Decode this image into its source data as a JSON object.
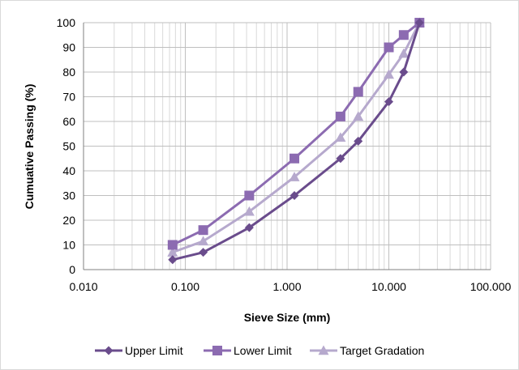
{
  "chart_data": {
    "type": "line",
    "xlabel": "Sieve Size (mm)",
    "ylabel": "Cumuative Passing (%)",
    "xscale": "log",
    "xlim": [
      0.01,
      100
    ],
    "ylim": [
      0,
      100
    ],
    "x_ticks": [
      0.01,
      0.1,
      1,
      10,
      100
    ],
    "x_tick_labels": [
      "0.010",
      "0.100",
      "1.000",
      "10.000",
      "100.000"
    ],
    "y_ticks": [
      0,
      10,
      20,
      30,
      40,
      50,
      60,
      70,
      80,
      90,
      100
    ],
    "y_tick_labels": [
      "0",
      "10",
      "20",
      "30",
      "40",
      "50",
      "60",
      "70",
      "80",
      "90",
      "100"
    ],
    "grid": "major and minor vertical gridlines, major horizontal gridlines",
    "legend_position": "bottom",
    "series": [
      {
        "name": "Upper Limit",
        "marker": "diamond",
        "color": "#6a4c8c",
        "x": [
          0.075,
          0.15,
          0.425,
          1.18,
          3.35,
          5.0,
          10.0,
          14.0,
          20.0
        ],
        "y": [
          4,
          7,
          17,
          30,
          45,
          52,
          68,
          80,
          100
        ]
      },
      {
        "name": "Lower Limit",
        "marker": "square",
        "color": "#8c6bb1",
        "x": [
          0.075,
          0.15,
          0.425,
          1.18,
          3.35,
          5.0,
          10.0,
          14.0,
          20.0
        ],
        "y": [
          10,
          16,
          30,
          45,
          62,
          72,
          90,
          95,
          100
        ]
      },
      {
        "name": "Target Gradation",
        "marker": "triangle",
        "color": "#b6a9cd",
        "x": [
          0.075,
          0.15,
          0.425,
          1.18,
          3.35,
          5.0,
          10.0,
          14.0,
          20.0
        ],
        "y": [
          7,
          11.5,
          23.5,
          37.5,
          53.5,
          62,
          79,
          87.5,
          100
        ]
      }
    ]
  }
}
